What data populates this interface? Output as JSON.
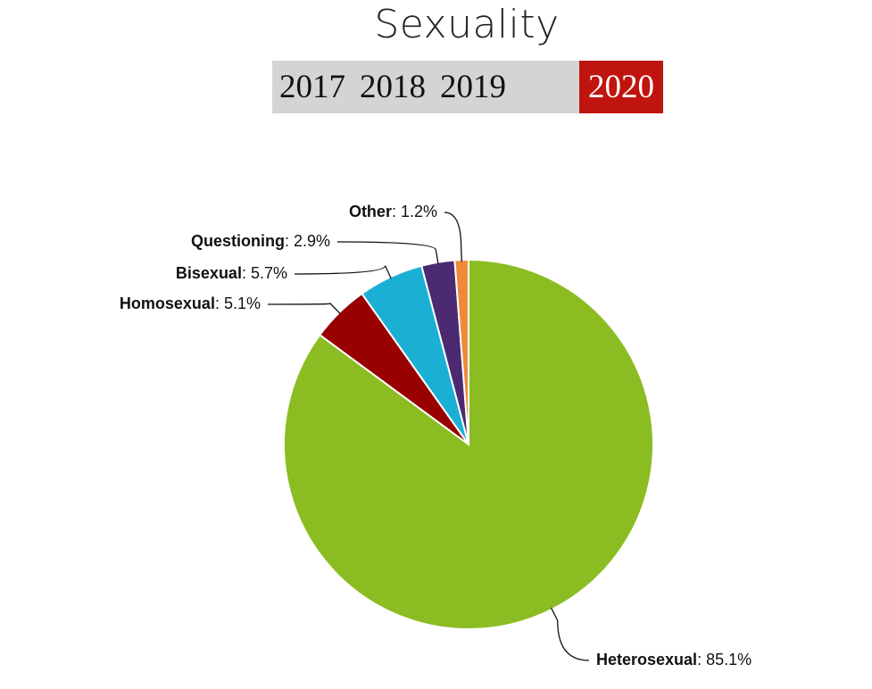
{
  "chart_data": {
    "type": "pie",
    "title": "Sexuality",
    "categories": [
      "Heterosexual",
      "Homosexual",
      "Bisexual",
      "Questioning",
      "Other"
    ],
    "values": [
      85.1,
      5.1,
      5.7,
      2.9,
      1.2
    ],
    "value_labels": [
      "85.1%",
      "5.1%",
      "5.7%",
      "2.9%",
      "1.2%"
    ],
    "colors": [
      "#8bbd22",
      "#990000",
      "#1ab0d3",
      "#4b2a72",
      "#f0883a"
    ]
  },
  "year_tabs": {
    "items": [
      "2017",
      "2018",
      "2019",
      "2020"
    ],
    "active": "2020"
  }
}
